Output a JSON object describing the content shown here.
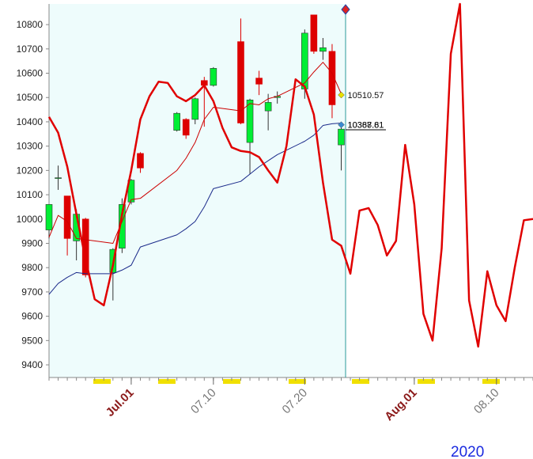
{
  "chart_data": {
    "type": "candlestick",
    "year_label": "2020",
    "xlim": [
      "06-22",
      "08-14"
    ],
    "ylim": [
      9348,
      10885
    ],
    "yticks": [
      9400,
      9500,
      9600,
      9700,
      9800,
      9900,
      10000,
      10100,
      10200,
      10300,
      10400,
      10500,
      10600,
      10700,
      10800
    ],
    "xticks": [
      {
        "value": "07-01",
        "label": "Jul.01",
        "color": "#8b1a1a"
      },
      {
        "value": "07-10",
        "label": "07.10",
        "color": "#777777"
      },
      {
        "value": "07-20",
        "label": "07.20",
        "color": "#777777"
      },
      {
        "value": "08-01",
        "label": "Aug.01",
        "color": "#8b1a1a"
      },
      {
        "value": "08-10",
        "label": "08.10",
        "color": "#777777"
      }
    ],
    "x": [
      "06-22",
      "06-23",
      "06-24",
      "06-25",
      "06-26",
      "06-29",
      "06-30",
      "07-01",
      "07-02",
      "07-06",
      "07-07",
      "07-08",
      "07-09",
      "07-10",
      "07-13",
      "07-14",
      "07-15",
      "07-16",
      "07-17",
      "07-20",
      "07-21",
      "07-22",
      "07-23",
      "07-24"
    ],
    "open": [
      9955,
      10170,
      10095,
      9910,
      10000,
      9780,
      9880,
      10070,
      10270,
      10365,
      10410,
      10410,
      10570,
      10550,
      10730,
      10315,
      10580,
      10445,
      10500,
      10535,
      10840,
      10690,
      10690,
      10305
    ],
    "high": [
      10060,
      10220,
      10095,
      10040,
      10005,
      9880,
      10085,
      10165,
      10275,
      10440,
      10415,
      10500,
      10585,
      10625,
      10825,
      10495,
      10610,
      10515,
      10525,
      10780,
      10840,
      10745,
      10720,
      10380
    ],
    "low": [
      9920,
      10120,
      9850,
      9830,
      9760,
      9665,
      9860,
      10060,
      10190,
      10360,
      10330,
      10390,
      10380,
      10545,
      10390,
      10185,
      10510,
      10365,
      10475,
      10495,
      10680,
      10655,
      10415,
      10200
    ],
    "close": [
      10060,
      10170,
      9920,
      10020,
      9770,
      9875,
      10060,
      10160,
      10210,
      10435,
      10345,
      10495,
      10550,
      10620,
      10395,
      10490,
      10555,
      10480,
      10505,
      10765,
      10690,
      10705,
      10470,
      10370
    ],
    "up_color": "#00ee33",
    "down_color": "#dd0000",
    "series": [
      {
        "name": "ma-long",
        "color": "#1a2a8a",
        "width": 1,
        "values": [
          9690,
          9735,
          9760,
          9780,
          9775,
          9775,
          9790,
          9810,
          9885,
          9935,
          9960,
          9990,
          10050,
          10125,
          10155,
          10185,
          10215,
          10240,
          10265,
          10320,
          10345,
          10385,
          10392,
          10395
        ]
      },
      {
        "name": "ma-short",
        "color": "#cc0000",
        "width": 1,
        "values": [
          9925,
          10015,
          9990,
          9920,
          9915,
          9900,
          9990,
          10080,
          10085,
          10200,
          10250,
          10315,
          10410,
          10460,
          10445,
          10475,
          10470,
          10495,
          10505,
          10560,
          10605,
          10645,
          10600,
          10515
        ]
      }
    ],
    "forecast": {
      "color": "#e00000",
      "width": 2.5,
      "x": [
        "06-22",
        "06-23",
        "06-24",
        "06-25",
        "06-26",
        "06-27",
        "06-28",
        "06-29",
        "06-30",
        "07-01",
        "07-02",
        "07-03",
        "07-04",
        "07-05",
        "07-06",
        "07-07",
        "07-08",
        "07-09",
        "07-10",
        "07-11",
        "07-12",
        "07-13",
        "07-14",
        "07-15",
        "07-16",
        "07-17",
        "07-18",
        "07-19",
        "07-20",
        "07-21",
        "07-22",
        "07-23",
        "07-24",
        "07-25",
        "07-26",
        "07-27",
        "07-28",
        "07-29",
        "07-30",
        "07-31",
        "08-01",
        "08-02",
        "08-03",
        "08-04",
        "08-05",
        "08-06",
        "08-07",
        "08-08",
        "08-09",
        "08-10",
        "08-11",
        "08-12",
        "08-13",
        "08-14"
      ],
      "values": [
        10420,
        10355,
        10215,
        10020,
        9835,
        9670,
        9645,
        9810,
        10020,
        10200,
        10410,
        10505,
        10565,
        10560,
        10505,
        10485,
        10510,
        10550,
        10485,
        10375,
        10295,
        10280,
        10275,
        10255,
        10200,
        10150,
        10300,
        10575,
        10545,
        10430,
        10150,
        9915,
        9890,
        9775,
        10035,
        10045,
        9975,
        9850,
        9910,
        10305,
        10060,
        9610,
        9500,
        9880,
        10680,
        10885,
        9665,
        9475,
        9785,
        9645,
        9580,
        9800,
        9995,
        10000
      ]
    },
    "annotations": [
      {
        "x": "07-24",
        "value": 10510.57,
        "color": "#e8e000"
      },
      {
        "x": "07-24",
        "value": 10387.81,
        "color": "#3a8ad0"
      },
      {
        "x": "07-24",
        "value": 10368.61,
        "color": "#3a8ad0"
      }
    ]
  }
}
